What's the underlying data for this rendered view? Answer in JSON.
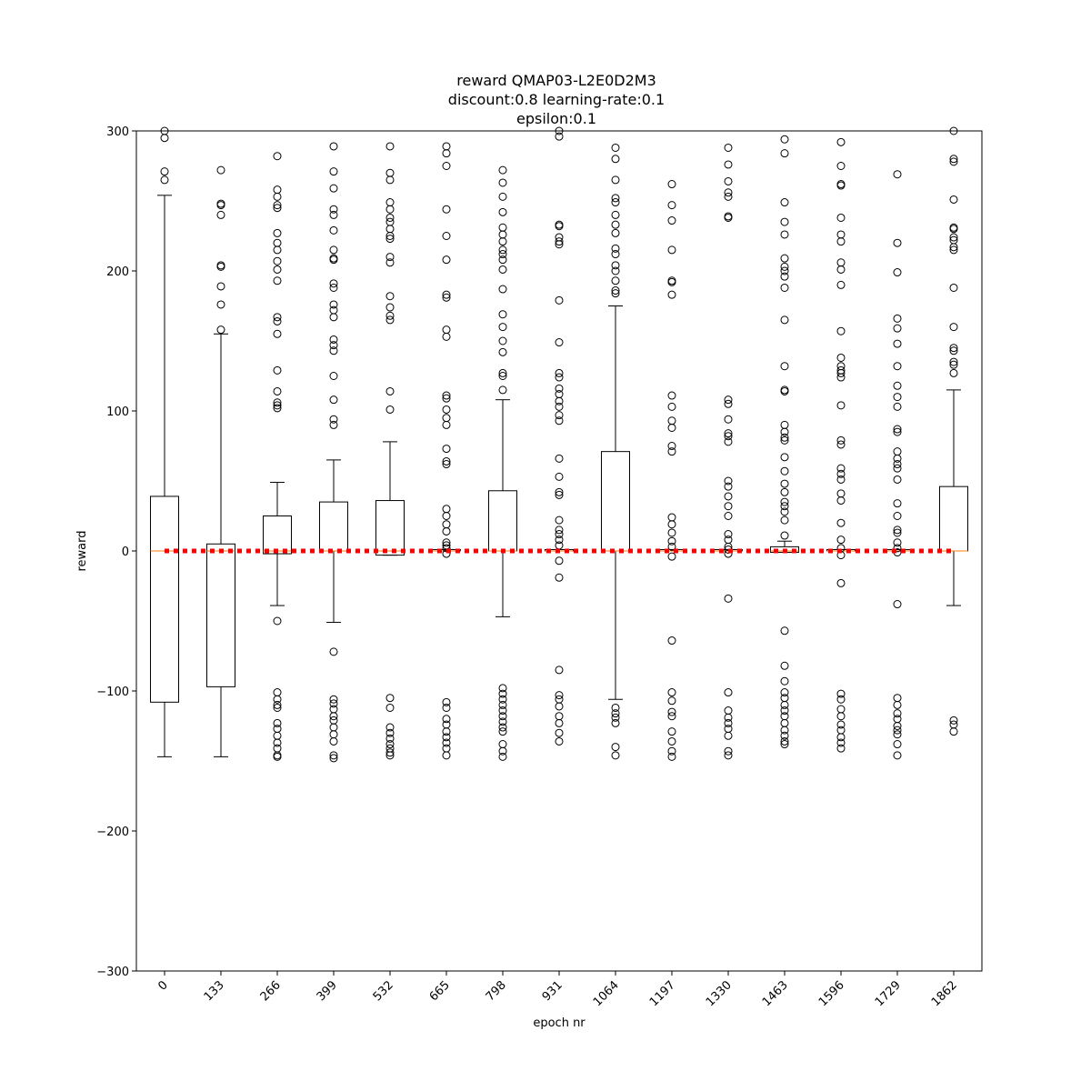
{
  "chart_data": {
    "type": "box",
    "title_lines": [
      "reward QMAP03-L2E0D2M3",
      "discount:0.8 learning-rate:0.1",
      "epsilon:0.1"
    ],
    "xlabel": "epoch nr",
    "ylabel": "reward",
    "ylim": [
      -300,
      300
    ],
    "yticks": [
      -300,
      -200,
      -100,
      0,
      100,
      200,
      300
    ],
    "yticks_labels": [
      "−300",
      "−200",
      "−100",
      "0",
      "100",
      "200",
      "300"
    ],
    "categories": [
      "0",
      "133",
      "266",
      "399",
      "532",
      "665",
      "798",
      "931",
      "1064",
      "1197",
      "1330",
      "1463",
      "1596",
      "1729",
      "1862"
    ],
    "reference_line": {
      "y": 0,
      "color": "#ff0000",
      "style": "dotted"
    },
    "colors": {
      "box": "#000000",
      "median": "#ff7f0e",
      "reference": "#ff0000",
      "axes": "#000000"
    },
    "boxes": [
      {
        "label": "0",
        "q1": -108,
        "median": 0,
        "q3": 39,
        "whisker_low": -147,
        "whisker_high": 254,
        "fliers": [
          300,
          295,
          271,
          265
        ]
      },
      {
        "label": "133",
        "q1": -97,
        "median": 0,
        "q3": 5,
        "whisker_low": -147,
        "whisker_high": 155,
        "fliers": [
          272,
          248,
          247,
          240,
          204,
          203,
          189,
          176,
          158
        ]
      },
      {
        "label": "266",
        "q1": -2,
        "median": 0,
        "q3": 25,
        "whisker_low": -39,
        "whisker_high": 49,
        "fliers": [
          282,
          258,
          253,
          247,
          245,
          227,
          220,
          215,
          207,
          201,
          193,
          167,
          164,
          155,
          129,
          114,
          106,
          104,
          102,
          -50,
          -101,
          -106,
          -110,
          -112,
          -123,
          -127,
          -132,
          -137,
          -141,
          -146,
          -147
        ]
      },
      {
        "label": "399",
        "q1": 0,
        "median": 0,
        "q3": 35,
        "whisker_low": -51,
        "whisker_high": 65,
        "fliers": [
          289,
          271,
          259,
          244,
          240,
          229,
          215,
          209,
          208,
          191,
          188,
          176,
          172,
          167,
          151,
          147,
          143,
          125,
          108,
          94,
          90,
          -72,
          -106,
          -109,
          -113,
          -118,
          -121,
          -126,
          -131,
          -136,
          -146,
          -148
        ]
      },
      {
        "label": "532",
        "q1": -3,
        "median": 0,
        "q3": 36,
        "whisker_low": -3,
        "whisker_high": 78,
        "fliers": [
          289,
          270,
          265,
          249,
          244,
          238,
          235,
          230,
          225,
          223,
          210,
          206,
          182,
          174,
          168,
          165,
          114,
          101,
          -105,
          -112,
          -126,
          -130,
          -134,
          -138,
          -141,
          -144,
          -146
        ]
      },
      {
        "label": "665",
        "q1": 0,
        "median": 0,
        "q3": 1,
        "whisker_low": 0,
        "whisker_high": 1,
        "fliers": [
          289,
          284,
          275,
          244,
          225,
          208,
          183,
          181,
          158,
          153,
          111,
          109,
          101,
          95,
          90,
          73,
          64,
          62,
          30,
          25,
          19,
          14,
          6,
          4,
          2,
          -2,
          -108,
          -112,
          -120,
          -124,
          -129,
          -133,
          -137,
          -141,
          -146
        ]
      },
      {
        "label": "798",
        "q1": 0,
        "median": 0,
        "q3": 43,
        "whisker_low": -47,
        "whisker_high": 108,
        "fliers": [
          272,
          263,
          253,
          242,
          231,
          226,
          221,
          215,
          212,
          208,
          201,
          187,
          169,
          160,
          150,
          142,
          127,
          125,
          115,
          -98,
          -102,
          -106,
          -110,
          -114,
          -118,
          -122,
          -126,
          -129,
          -138,
          -143,
          -147
        ]
      },
      {
        "label": "931",
        "q1": 0,
        "median": 0,
        "q3": 1,
        "whisker_low": 0,
        "whisker_high": 1,
        "fliers": [
          300,
          296,
          233,
          232,
          224,
          221,
          219,
          179,
          149,
          127,
          124,
          116,
          112,
          107,
          103,
          97,
          93,
          66,
          53,
          42,
          40,
          22,
          15,
          12,
          8,
          4,
          -7,
          -19,
          -85,
          -103,
          -106,
          -111,
          -118,
          -123,
          -130,
          -136
        ]
      },
      {
        "label": "1064",
        "q1": 0,
        "median": 0,
        "q3": 71,
        "whisker_low": -106,
        "whisker_high": 175,
        "fliers": [
          288,
          280,
          265,
          252,
          249,
          240,
          233,
          227,
          216,
          212,
          204,
          200,
          193,
          186,
          184,
          -112,
          -116,
          -119,
          -123,
          -140,
          -146
        ]
      },
      {
        "label": "1197",
        "q1": 0,
        "median": 0,
        "q3": 1,
        "whisker_low": 0,
        "whisker_high": 1,
        "fliers": [
          262,
          247,
          236,
          215,
          193,
          192,
          183,
          111,
          103,
          93,
          88,
          75,
          71,
          24,
          19,
          13,
          7,
          3,
          -4,
          -64,
          -101,
          -107,
          -115,
          -118,
          -129,
          -136,
          -143,
          -147
        ]
      },
      {
        "label": "1330",
        "q1": 0,
        "median": 0,
        "q3": 1,
        "whisker_low": 0,
        "whisker_high": 1,
        "fliers": [
          288,
          276,
          264,
          256,
          253,
          239,
          238,
          108,
          105,
          94,
          84,
          82,
          78,
          50,
          46,
          39,
          32,
          25,
          12,
          8,
          3,
          1,
          -2,
          -34,
          -101,
          -114,
          -119,
          -123,
          -127,
          -132,
          -143,
          -146
        ]
      },
      {
        "label": "1463",
        "q1": -1,
        "median": 0,
        "q3": 3,
        "whisker_low": -1,
        "whisker_high": 7,
        "fliers": [
          294,
          284,
          249,
          235,
          226,
          209,
          203,
          200,
          196,
          188,
          165,
          132,
          115,
          114,
          90,
          85,
          81,
          79,
          67,
          57,
          48,
          42,
          35,
          32,
          28,
          22,
          11,
          -57,
          -82,
          -93,
          -101,
          -105,
          -110,
          -114,
          -118,
          -123,
          -128,
          -132,
          -136,
          -138
        ]
      },
      {
        "label": "1596",
        "q1": 0,
        "median": 0,
        "q3": 1,
        "whisker_low": 0,
        "whisker_high": 1,
        "fliers": [
          292,
          275,
          262,
          261,
          238,
          226,
          221,
          206,
          201,
          190,
          157,
          138,
          132,
          129,
          127,
          124,
          104,
          79,
          76,
          59,
          55,
          51,
          41,
          36,
          20,
          8,
          2,
          -3,
          -23,
          -102,
          -106,
          -113,
          -118,
          -124,
          -128,
          -133,
          -137,
          -141
        ]
      },
      {
        "label": "1729",
        "q1": 0,
        "median": 0,
        "q3": 1,
        "whisker_low": 0,
        "whisker_high": 1,
        "fliers": [
          269,
          220,
          199,
          166,
          159,
          148,
          132,
          118,
          110,
          103,
          87,
          85,
          71,
          66,
          62,
          59,
          51,
          34,
          25,
          15,
          13,
          6,
          2,
          -1,
          -38,
          -105,
          -110,
          -116,
          -120,
          -125,
          -128,
          -131,
          -138,
          -146
        ]
      },
      {
        "label": "1862",
        "q1": 0,
        "median": 0,
        "q3": 46,
        "whisker_low": -39,
        "whisker_high": 115,
        "fliers": [
          300,
          280,
          278,
          251,
          231,
          230,
          224,
          222,
          217,
          215,
          188,
          160,
          145,
          143,
          135,
          133,
          127,
          -121,
          -124,
          -129
        ]
      }
    ]
  }
}
